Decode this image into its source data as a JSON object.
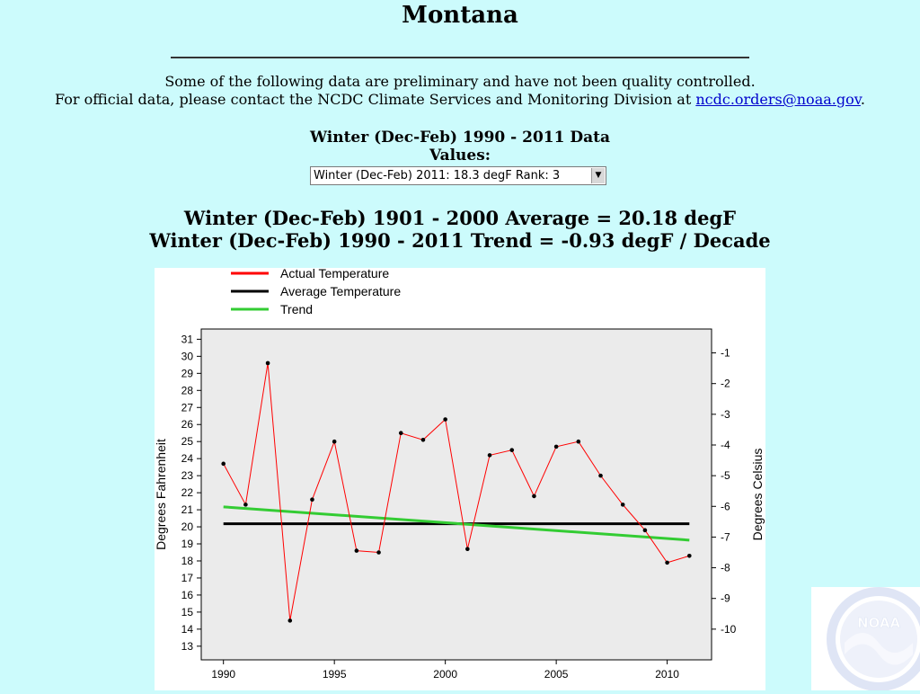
{
  "page": {
    "title": "Montana",
    "note_line1": "Some of the following data are preliminary and have not been quality controlled.",
    "note_line2_prefix": "For official data, please contact the NCDC Climate Services and Monitoring Division at ",
    "note_line2_link": "ncdc.orders@noaa.gov",
    "note_line2_suffix": ".",
    "data_heading": "Winter (Dec-Feb) 1990 - 2011 Data",
    "values_label": "Values:",
    "values_select": "Winter (Dec-Feb) 2011: 18.3 degF  Rank: 3",
    "average_line": "Winter (Dec-Feb) 1901 - 2000 Average = 20.18 degF",
    "trend_line": "Winter (Dec-Feb) 1990 - 2011 Trend = -0.93 degF / Decade"
  },
  "colors": {
    "actual": "#ff0000",
    "average": "#000000",
    "trend": "#33cc33",
    "plot_bg": "#ebebeb"
  },
  "logo": {
    "text": "NOAA"
  },
  "chart_data": {
    "type": "line",
    "legend": [
      "Actual Temperature",
      "Average Temperature",
      "Trend"
    ],
    "legend_position": "top-left",
    "ylabel": "Degrees Fahrenheit",
    "ylabel_right": "Degrees Celsius",
    "xlim": [
      1989,
      2012
    ],
    "ylim": [
      12.2,
      31.6
    ],
    "x_ticks": [
      1990,
      1995,
      2000,
      2005,
      2010
    ],
    "y_ticks": [
      13,
      14,
      15,
      16,
      17,
      18,
      19,
      20,
      21,
      22,
      23,
      24,
      25,
      26,
      27,
      28,
      29,
      30,
      31
    ],
    "y_right_ticks": [
      -1,
      -2,
      -3,
      -4,
      -5,
      -6,
      -7,
      -8,
      -9,
      -10
    ],
    "x": [
      1990,
      1991,
      1992,
      1993,
      1994,
      1995,
      1996,
      1997,
      1998,
      1999,
      2000,
      2001,
      2002,
      2003,
      2004,
      2005,
      2006,
      2007,
      2008,
      2009,
      2010,
      2011
    ],
    "series": [
      {
        "name": "Actual Temperature",
        "values": [
          23.7,
          21.3,
          29.6,
          14.5,
          21.6,
          25.0,
          18.6,
          18.5,
          25.5,
          25.1,
          26.3,
          18.7,
          24.2,
          24.5,
          21.8,
          24.7,
          25.0,
          23.0,
          21.3,
          19.8,
          17.9,
          18.3
        ]
      },
      {
        "name": "Average Temperature",
        "values": [
          20.18,
          20.18
        ],
        "x": [
          1990,
          2011
        ]
      },
      {
        "name": "Trend",
        "values": [
          21.17,
          19.22
        ],
        "x": [
          1990,
          2011
        ]
      }
    ]
  }
}
